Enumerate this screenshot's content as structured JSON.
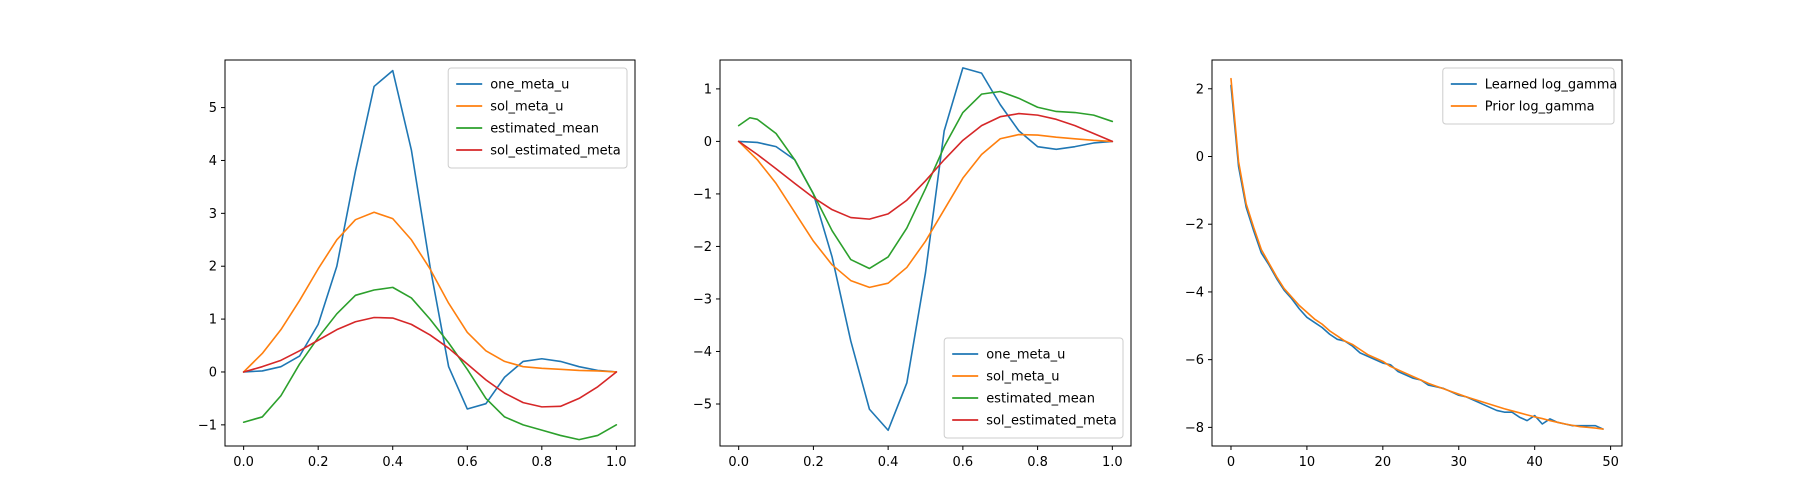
{
  "chart_data": [
    {
      "type": "line",
      "title": "",
      "xlabel": "",
      "ylabel": "",
      "xlim": [
        -0.05,
        1.05
      ],
      "ylim": [
        -1.4,
        5.9
      ],
      "xticks": [
        0.0,
        0.2,
        0.4,
        0.6,
        0.8,
        1.0
      ],
      "yticks": [
        -1,
        0,
        1,
        2,
        3,
        4,
        5
      ],
      "xtick_labels": [
        "0.0",
        "0.2",
        "0.4",
        "0.6",
        "0.8",
        "1.0"
      ],
      "ytick_labels": [
        "−1",
        "0",
        "1",
        "2",
        "3",
        "4",
        "5"
      ],
      "legend": "top-right",
      "series": [
        {
          "name": "one_meta_u",
          "color": "#1f77b4",
          "x": [
            0,
            0.05,
            0.1,
            0.15,
            0.2,
            0.25,
            0.3,
            0.35,
            0.4,
            0.45,
            0.5,
            0.55,
            0.6,
            0.65,
            0.7,
            0.75,
            0.8,
            0.85,
            0.9,
            0.95,
            1.0
          ],
          "y": [
            0,
            0.02,
            0.1,
            0.3,
            0.9,
            2.0,
            3.8,
            5.4,
            5.7,
            4.2,
            2.0,
            0.1,
            -0.7,
            -0.6,
            -0.1,
            0.2,
            0.25,
            0.2,
            0.1,
            0.03,
            0
          ]
        },
        {
          "name": "sol_meta_u",
          "color": "#ff7f0e",
          "x": [
            0,
            0.05,
            0.1,
            0.15,
            0.2,
            0.25,
            0.3,
            0.35,
            0.4,
            0.45,
            0.5,
            0.55,
            0.6,
            0.65,
            0.7,
            0.75,
            0.8,
            0.85,
            0.9,
            0.95,
            1.0
          ],
          "y": [
            0,
            0.35,
            0.8,
            1.35,
            1.95,
            2.5,
            2.88,
            3.02,
            2.9,
            2.5,
            1.95,
            1.3,
            0.75,
            0.4,
            0.2,
            0.1,
            0.07,
            0.05,
            0.03,
            0.02,
            0
          ]
        },
        {
          "name": "estimated_mean",
          "color": "#2ca02c",
          "x": [
            0,
            0.05,
            0.1,
            0.15,
            0.2,
            0.25,
            0.3,
            0.35,
            0.4,
            0.45,
            0.5,
            0.55,
            0.6,
            0.65,
            0.7,
            0.75,
            0.8,
            0.85,
            0.9,
            0.95,
            1.0
          ],
          "y": [
            -0.95,
            -0.85,
            -0.45,
            0.15,
            0.65,
            1.1,
            1.45,
            1.55,
            1.6,
            1.4,
            1.0,
            0.55,
            0.05,
            -0.5,
            -0.85,
            -1.0,
            -1.1,
            -1.2,
            -1.28,
            -1.2,
            -1.0
          ]
        },
        {
          "name": "sol_estimated_meta",
          "color": "#d62728",
          "x": [
            0,
            0.05,
            0.1,
            0.15,
            0.2,
            0.25,
            0.3,
            0.35,
            0.4,
            0.45,
            0.5,
            0.55,
            0.6,
            0.65,
            0.7,
            0.75,
            0.8,
            0.85,
            0.9,
            0.95,
            1.0
          ],
          "y": [
            0,
            0.1,
            0.22,
            0.4,
            0.6,
            0.8,
            0.95,
            1.03,
            1.02,
            0.9,
            0.7,
            0.45,
            0.15,
            -0.15,
            -0.4,
            -0.58,
            -0.66,
            -0.65,
            -0.5,
            -0.28,
            0
          ]
        }
      ]
    },
    {
      "type": "line",
      "title": "",
      "xlabel": "",
      "ylabel": "",
      "xlim": [
        -0.05,
        1.05
      ],
      "ylim": [
        -5.8,
        1.55
      ],
      "xticks": [
        0.0,
        0.2,
        0.4,
        0.6,
        0.8,
        1.0
      ],
      "yticks": [
        -5,
        -4,
        -3,
        -2,
        -1,
        0,
        1
      ],
      "xtick_labels": [
        "0.0",
        "0.2",
        "0.4",
        "0.6",
        "0.8",
        "1.0"
      ],
      "ytick_labels": [
        "−5",
        "−4",
        "−3",
        "−2",
        "−1",
        "0",
        "1"
      ],
      "legend": "bottom-right",
      "series": [
        {
          "name": "one_meta_u",
          "color": "#1f77b4",
          "x": [
            0,
            0.05,
            0.1,
            0.15,
            0.2,
            0.25,
            0.3,
            0.35,
            0.4,
            0.45,
            0.5,
            0.55,
            0.6,
            0.65,
            0.7,
            0.75,
            0.8,
            0.85,
            0.9,
            0.95,
            1.0
          ],
          "y": [
            0,
            -0.02,
            -0.1,
            -0.35,
            -1.0,
            -2.2,
            -3.8,
            -5.1,
            -5.5,
            -4.6,
            -2.5,
            0.2,
            1.4,
            1.3,
            0.7,
            0.2,
            -0.1,
            -0.15,
            -0.1,
            -0.03,
            0
          ]
        },
        {
          "name": "sol_meta_u",
          "color": "#ff7f0e",
          "x": [
            0,
            0.05,
            0.1,
            0.15,
            0.2,
            0.25,
            0.3,
            0.35,
            0.4,
            0.45,
            0.5,
            0.55,
            0.6,
            0.65,
            0.7,
            0.75,
            0.8,
            0.85,
            0.9,
            0.95,
            1.0
          ],
          "y": [
            0,
            -0.35,
            -0.8,
            -1.35,
            -1.9,
            -2.35,
            -2.65,
            -2.78,
            -2.7,
            -2.4,
            -1.9,
            -1.3,
            -0.7,
            -0.25,
            0.05,
            0.13,
            0.12,
            0.08,
            0.05,
            0.02,
            0
          ]
        },
        {
          "name": "estimated_mean",
          "color": "#2ca02c",
          "x": [
            0,
            0.03,
            0.05,
            0.1,
            0.15,
            0.2,
            0.25,
            0.3,
            0.35,
            0.4,
            0.45,
            0.5,
            0.55,
            0.6,
            0.65,
            0.7,
            0.75,
            0.8,
            0.85,
            0.9,
            0.95,
            1.0
          ],
          "y": [
            0.3,
            0.45,
            0.42,
            0.15,
            -0.35,
            -1.0,
            -1.7,
            -2.25,
            -2.42,
            -2.2,
            -1.65,
            -0.9,
            -0.1,
            0.55,
            0.9,
            0.95,
            0.82,
            0.65,
            0.57,
            0.55,
            0.5,
            0.38
          ]
        },
        {
          "name": "sol_estimated_meta",
          "color": "#d62728",
          "x": [
            0,
            0.05,
            0.1,
            0.15,
            0.2,
            0.25,
            0.3,
            0.35,
            0.4,
            0.45,
            0.5,
            0.55,
            0.6,
            0.65,
            0.7,
            0.75,
            0.8,
            0.85,
            0.9,
            0.95,
            1.0
          ],
          "y": [
            0,
            -0.25,
            -0.52,
            -0.8,
            -1.07,
            -1.3,
            -1.45,
            -1.48,
            -1.38,
            -1.12,
            -0.75,
            -0.35,
            0.02,
            0.3,
            0.47,
            0.53,
            0.5,
            0.42,
            0.3,
            0.15,
            0
          ]
        }
      ]
    },
    {
      "type": "line",
      "title": "",
      "xlabel": "",
      "ylabel": "",
      "xlim": [
        -2.5,
        51.5
      ],
      "ylim": [
        -8.55,
        2.85
      ],
      "xticks": [
        0,
        10,
        20,
        30,
        40,
        50
      ],
      "yticks": [
        -8,
        -6,
        -4,
        -2,
        0,
        2
      ],
      "xtick_labels": [
        "0",
        "10",
        "20",
        "30",
        "40",
        "50"
      ],
      "ytick_labels": [
        "−8",
        "−6",
        "−4",
        "−2",
        "0",
        "2"
      ],
      "legend": "top-right",
      "series": [
        {
          "name": "Learned log_gamma",
          "color": "#1f77b4",
          "x": [
            0,
            1,
            2,
            3,
            4,
            5,
            6,
            7,
            8,
            9,
            10,
            11,
            12,
            13,
            14,
            15,
            16,
            17,
            18,
            19,
            20,
            21,
            22,
            23,
            24,
            25,
            26,
            27,
            28,
            29,
            30,
            31,
            32,
            33,
            34,
            35,
            36,
            37,
            38,
            39,
            40,
            41,
            42,
            43,
            44,
            45,
            46,
            47,
            48,
            49
          ],
          "y": [
            2.1,
            -0.3,
            -1.5,
            -2.2,
            -2.85,
            -3.2,
            -3.6,
            -3.95,
            -4.2,
            -4.5,
            -4.75,
            -4.9,
            -5.05,
            -5.25,
            -5.4,
            -5.45,
            -5.6,
            -5.8,
            -5.9,
            -6.0,
            -6.1,
            -6.15,
            -6.35,
            -6.45,
            -6.55,
            -6.6,
            -6.75,
            -6.8,
            -6.85,
            -6.95,
            -7.05,
            -7.1,
            -7.2,
            -7.3,
            -7.4,
            -7.5,
            -7.55,
            -7.55,
            -7.7,
            -7.8,
            -7.65,
            -7.9,
            -7.75,
            -7.85,
            -7.9,
            -7.95,
            -7.95,
            -7.95,
            -7.95,
            -8.05
          ]
        },
        {
          "name": "Prior log_gamma",
          "color": "#ff7f0e",
          "x": [
            0,
            1,
            2,
            3,
            4,
            5,
            6,
            7,
            8,
            9,
            10,
            11,
            12,
            13,
            14,
            15,
            16,
            17,
            18,
            19,
            20,
            21,
            22,
            23,
            24,
            25,
            26,
            27,
            28,
            29,
            30,
            31,
            32,
            33,
            34,
            35,
            36,
            37,
            38,
            39,
            40,
            41,
            42,
            43,
            44,
            45,
            46,
            47,
            48,
            49
          ],
          "y": [
            2.3,
            -0.15,
            -1.4,
            -2.1,
            -2.75,
            -3.15,
            -3.55,
            -3.9,
            -4.15,
            -4.4,
            -4.6,
            -4.8,
            -4.95,
            -5.15,
            -5.3,
            -5.45,
            -5.55,
            -5.7,
            -5.85,
            -5.95,
            -6.05,
            -6.2,
            -6.3,
            -6.4,
            -6.5,
            -6.6,
            -6.7,
            -6.78,
            -6.86,
            -6.94,
            -7.02,
            -7.1,
            -7.17,
            -7.24,
            -7.31,
            -7.38,
            -7.45,
            -7.51,
            -7.57,
            -7.63,
            -7.69,
            -7.74,
            -7.8,
            -7.85,
            -7.9,
            -7.94,
            -7.98,
            -8.0,
            -8.02,
            -8.05
          ]
        }
      ]
    }
  ]
}
